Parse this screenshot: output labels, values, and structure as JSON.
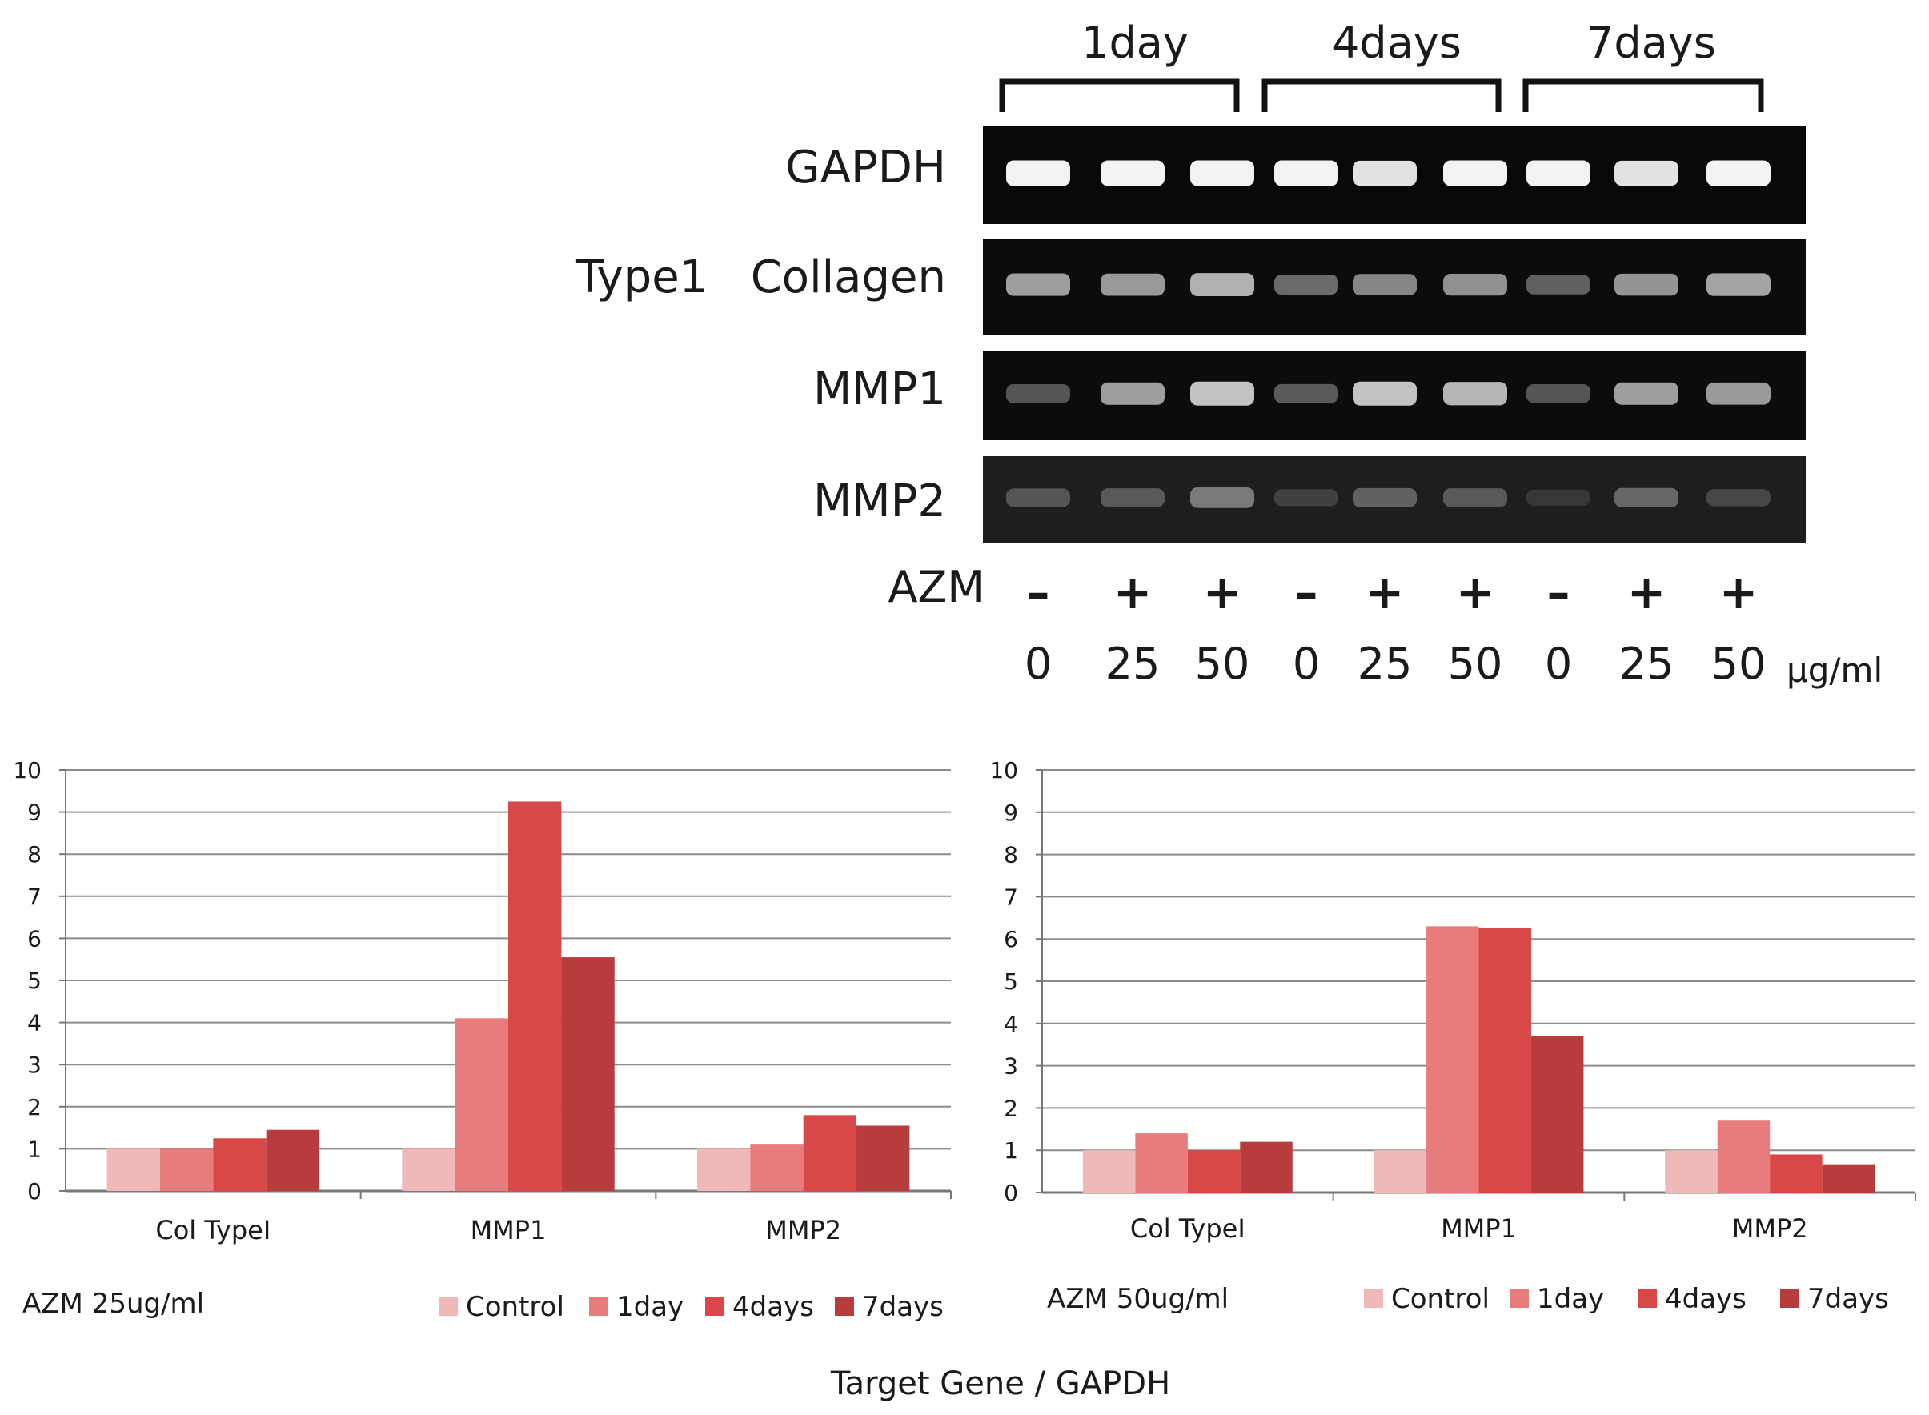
{
  "gel": {
    "time_groups": [
      "1day",
      "4days",
      "7days"
    ],
    "row_labels": [
      "GAPDH",
      "Type1   Collagen",
      "MMP1",
      "MMP2"
    ],
    "azm_label": "AZM",
    "azm_signs": [
      "–",
      "+",
      "+",
      "–",
      "+",
      "+",
      "–",
      "+",
      "+"
    ],
    "doses": [
      "0",
      "25",
      "50",
      "0",
      "25",
      "50",
      "0",
      "25",
      "50"
    ],
    "dose_unit": "μg/ml",
    "band_intensity": [
      [
        1.0,
        1.0,
        1.0,
        1.0,
        0.95,
        1.0,
        1.0,
        0.95,
        1.0
      ],
      [
        0.72,
        0.7,
        0.78,
        0.5,
        0.62,
        0.66,
        0.45,
        0.68,
        0.74
      ],
      [
        0.4,
        0.72,
        0.85,
        0.42,
        0.85,
        0.8,
        0.4,
        0.72,
        0.7
      ],
      [
        0.35,
        0.38,
        0.55,
        0.22,
        0.42,
        0.38,
        0.15,
        0.45,
        0.25
      ]
    ]
  },
  "chart_data": [
    {
      "type": "bar",
      "title": "AZM 25ug/ml",
      "categories": [
        "Col TypeI",
        "MMP1",
        "MMP2"
      ],
      "series": [
        {
          "name": "Control",
          "color": "#f0b8b8",
          "values": [
            1.0,
            1.0,
            1.0
          ]
        },
        {
          "name": "1day",
          "color": "#e87c7c",
          "values": [
            1.0,
            4.1,
            1.1
          ]
        },
        {
          "name": "4days",
          "color": "#d94848",
          "values": [
            1.25,
            9.25,
            1.8
          ]
        },
        {
          "name": "7days",
          "color": "#b83c3c",
          "values": [
            1.45,
            5.55,
            1.55
          ]
        }
      ],
      "ylim": [
        0,
        10
      ],
      "yticks": [
        "0",
        "1",
        "2",
        "3",
        "4",
        "5",
        "6",
        "7",
        "8",
        "9",
        "10"
      ],
      "grid": true,
      "legend": "bottom"
    },
    {
      "type": "bar",
      "title": "AZM 50ug/ml",
      "categories": [
        "Col TypeI",
        "MMP1",
        "MMP2"
      ],
      "series": [
        {
          "name": "Control",
          "color": "#f0b8b8",
          "values": [
            1.0,
            1.0,
            1.0
          ]
        },
        {
          "name": "1day",
          "color": "#e87c7c",
          "values": [
            1.4,
            6.3,
            1.7
          ]
        },
        {
          "name": "4days",
          "color": "#d94848",
          "values": [
            1.0,
            6.25,
            0.9
          ]
        },
        {
          "name": "7days",
          "color": "#b83c3c",
          "values": [
            1.2,
            3.7,
            0.65
          ]
        }
      ],
      "ylim": [
        0,
        10
      ],
      "yticks": [
        "0",
        "1",
        "2",
        "3",
        "4",
        "5",
        "6",
        "7",
        "8",
        "9",
        "10"
      ],
      "grid": true,
      "legend": "bottom"
    }
  ],
  "footer": {
    "ylabel_note": "Target Gene / GAPDH"
  }
}
